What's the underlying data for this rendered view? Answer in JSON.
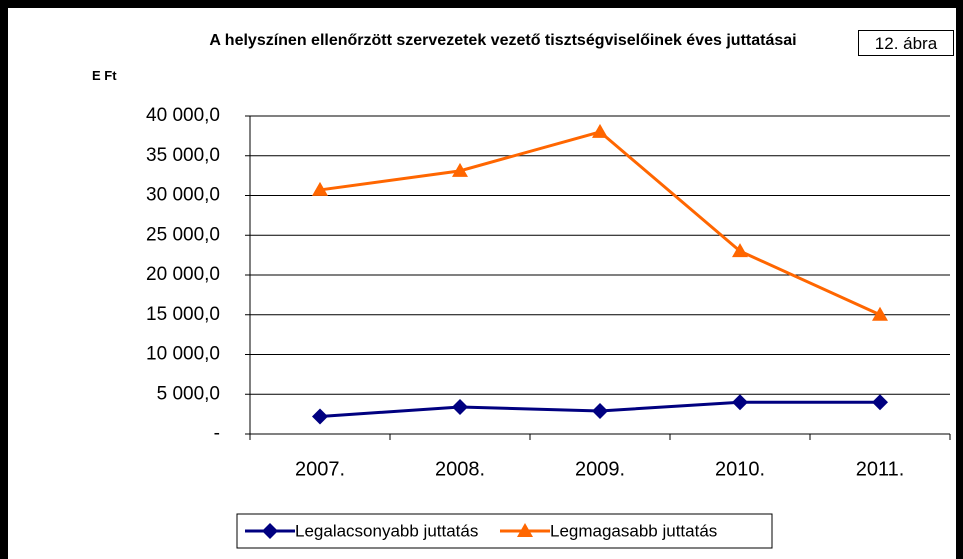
{
  "chart_data": {
    "type": "line",
    "title": "A helyszínen ellenőrzött szervezetek vezető tisztségviselőinek éves juttatásai",
    "annotation": "12. ábra",
    "y_label": "E Ft",
    "categories": [
      "2007.",
      "2008.",
      "2009.",
      "2010.",
      "2011."
    ],
    "series": [
      {
        "name": "Legalacsonyabb juttatás",
        "color": "#000080",
        "marker": "diamond",
        "values": [
          2200,
          3400,
          2900,
          4000,
          4000
        ]
      },
      {
        "name": "Legmagasabb juttatás",
        "color": "#ff6600",
        "marker": "triangle",
        "values": [
          30700,
          33100,
          38000,
          23000,
          15000
        ]
      }
    ],
    "ylim": [
      0,
      40000
    ],
    "yticks": [
      {
        "value": 0,
        "label": "-"
      },
      {
        "value": 5000,
        "label": "5 000,0"
      },
      {
        "value": 10000,
        "label": "10 000,0"
      },
      {
        "value": 15000,
        "label": "15 000,0"
      },
      {
        "value": 20000,
        "label": "20 000,0"
      },
      {
        "value": 25000,
        "label": "25 000,0"
      },
      {
        "value": 30000,
        "label": "30 000,0"
      },
      {
        "value": 35000,
        "label": "35 000,0"
      },
      {
        "value": 40000,
        "label": "40 000,0"
      }
    ],
    "grid": true,
    "legend": "bottom"
  }
}
